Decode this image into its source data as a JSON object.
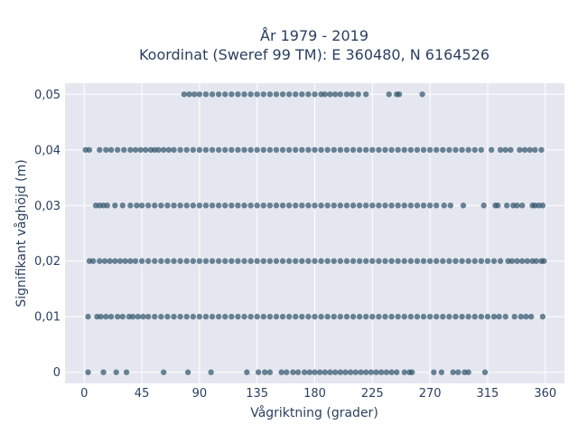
{
  "chart_data": {
    "type": "scatter",
    "title_line1": "År 1979 - 2019",
    "title_line2": "Koordinat (Sweref 99 TM): E 360480, N 6164526",
    "xlabel": "Vågriktning (grader)",
    "ylabel": "Signifikant våghöjd (m)",
    "xlim": [
      -15,
      375
    ],
    "ylim": [
      -0.002,
      0.052
    ],
    "x_ticks": [
      0,
      45,
      90,
      135,
      180,
      225,
      270,
      315,
      360
    ],
    "x_tick_labels": [
      "0",
      "45",
      "90",
      "135",
      "180",
      "225",
      "270",
      "315",
      "360"
    ],
    "y_ticks": [
      0,
      0.01,
      0.02,
      0.03,
      0.04,
      0.05
    ],
    "y_tick_labels": [
      "0",
      "0,01",
      "0,02",
      "0,03",
      "0,04",
      "0,05"
    ],
    "grid": true,
    "marker_color": "#2f5369",
    "plot_bg": "#e5e7f0",
    "points_by_height": [
      {
        "y": 0.05,
        "x": [
          78,
          82,
          86,
          90,
          95,
          100,
          105,
          110,
          115,
          120,
          125,
          130,
          135,
          140,
          145,
          150,
          155,
          160,
          165,
          170,
          175,
          180,
          185,
          188,
          192,
          196,
          200,
          205,
          209,
          214,
          220,
          238,
          244,
          246,
          264
        ]
      },
      {
        "y": 0.04,
        "x": [
          1,
          4,
          12,
          17,
          21,
          26,
          31,
          36,
          40,
          44,
          48,
          52,
          55,
          58,
          62,
          66,
          70,
          75,
          80,
          85,
          90,
          95,
          100,
          105,
          110,
          115,
          120,
          125,
          130,
          135,
          140,
          145,
          150,
          155,
          160,
          165,
          170,
          175,
          180,
          185,
          190,
          195,
          200,
          205,
          210,
          215,
          220,
          225,
          230,
          235,
          240,
          245,
          250,
          255,
          260,
          265,
          270,
          275,
          280,
          285,
          290,
          295,
          300,
          305,
          310,
          318,
          325,
          329,
          333,
          340,
          344,
          348,
          352,
          357
        ]
      },
      {
        "y": 0.03,
        "x": [
          9,
          12,
          15,
          18,
          24,
          30,
          36,
          41,
          45,
          50,
          55,
          60,
          65,
          70,
          75,
          80,
          85,
          90,
          95,
          100,
          105,
          110,
          115,
          120,
          125,
          130,
          135,
          140,
          145,
          150,
          155,
          160,
          165,
          170,
          175,
          180,
          185,
          190,
          195,
          200,
          205,
          210,
          215,
          220,
          225,
          230,
          235,
          240,
          245,
          250,
          255,
          260,
          265,
          270,
          275,
          281,
          286,
          296,
          312,
          321,
          323,
          330,
          335,
          338,
          342,
          350,
          352,
          355,
          358
        ]
      },
      {
        "y": 0.02,
        "x": [
          4,
          7,
          12,
          16,
          20,
          24,
          28,
          32,
          36,
          40,
          45,
          50,
          55,
          60,
          65,
          70,
          75,
          80,
          85,
          90,
          95,
          100,
          105,
          110,
          115,
          120,
          125,
          130,
          135,
          140,
          145,
          150,
          155,
          160,
          165,
          170,
          175,
          180,
          185,
          190,
          195,
          200,
          205,
          210,
          215,
          220,
          225,
          230,
          235,
          240,
          245,
          250,
          255,
          260,
          265,
          270,
          275,
          280,
          285,
          290,
          295,
          300,
          305,
          310,
          315,
          320,
          325,
          331,
          334,
          338,
          342,
          346,
          350,
          353,
          357,
          359
        ]
      },
      {
        "y": 0.01,
        "x": [
          3,
          10,
          13,
          17,
          21,
          26,
          30,
          35,
          38,
          42,
          46,
          50,
          55,
          60,
          65,
          70,
          75,
          80,
          85,
          90,
          95,
          100,
          105,
          110,
          115,
          120,
          125,
          130,
          135,
          140,
          145,
          150,
          155,
          160,
          165,
          170,
          175,
          180,
          185,
          190,
          195,
          200,
          205,
          210,
          215,
          220,
          225,
          230,
          235,
          240,
          245,
          250,
          255,
          260,
          265,
          270,
          275,
          280,
          285,
          290,
          295,
          300,
          305,
          310,
          315,
          320,
          324,
          329,
          336,
          341,
          345,
          349,
          358
        ]
      },
      {
        "y": 0,
        "x": [
          3,
          15,
          25,
          33,
          62,
          81,
          99,
          127,
          136,
          141,
          145,
          154,
          158,
          163,
          167,
          172,
          176,
          180,
          184,
          188,
          192,
          196,
          200,
          204,
          208,
          212,
          216,
          220,
          224,
          228,
          232,
          236,
          240,
          244,
          250,
          254,
          256,
          273,
          279,
          288,
          292,
          297,
          300,
          313
        ]
      }
    ]
  }
}
